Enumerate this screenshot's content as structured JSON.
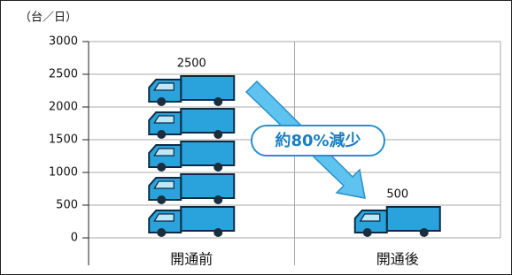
{
  "chart_data": {
    "type": "bar",
    "unit_label": "（台／日）",
    "annotation": "約80%減少",
    "categories": [
      "開通前",
      "開通後"
    ],
    "values": [
      2500,
      500
    ],
    "color": "#2aa3dc",
    "ylim": [
      0,
      3000
    ],
    "yticks": [
      0,
      500,
      1000,
      1500,
      2000,
      2500,
      3000
    ],
    "grid": true
  }
}
